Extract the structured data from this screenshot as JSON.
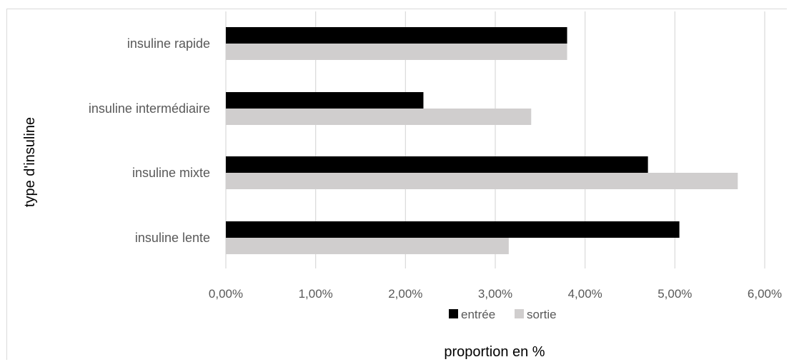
{
  "chart_data": {
    "type": "bar",
    "orientation": "horizontal",
    "categories": [
      "insuline rapide",
      "insuline intermédiaire",
      "insuline mixte",
      "insuline lente"
    ],
    "series": [
      {
        "name": "entrée",
        "color": "#000000",
        "values": [
          3.8,
          2.2,
          4.7,
          5.05
        ]
      },
      {
        "name": "sortie",
        "color": "#d0cece",
        "values": [
          3.8,
          3.4,
          5.7,
          3.15
        ]
      }
    ],
    "x_ticks": [
      "0,00%",
      "1,00%",
      "2,00%",
      "3,00%",
      "4,00%",
      "5,00%",
      "6,00%"
    ],
    "xlim": [
      0,
      6
    ],
    "xlabel": "proportion en %",
    "ylabel": "type d'insuline",
    "grid": true,
    "legend_position": "bottom"
  }
}
